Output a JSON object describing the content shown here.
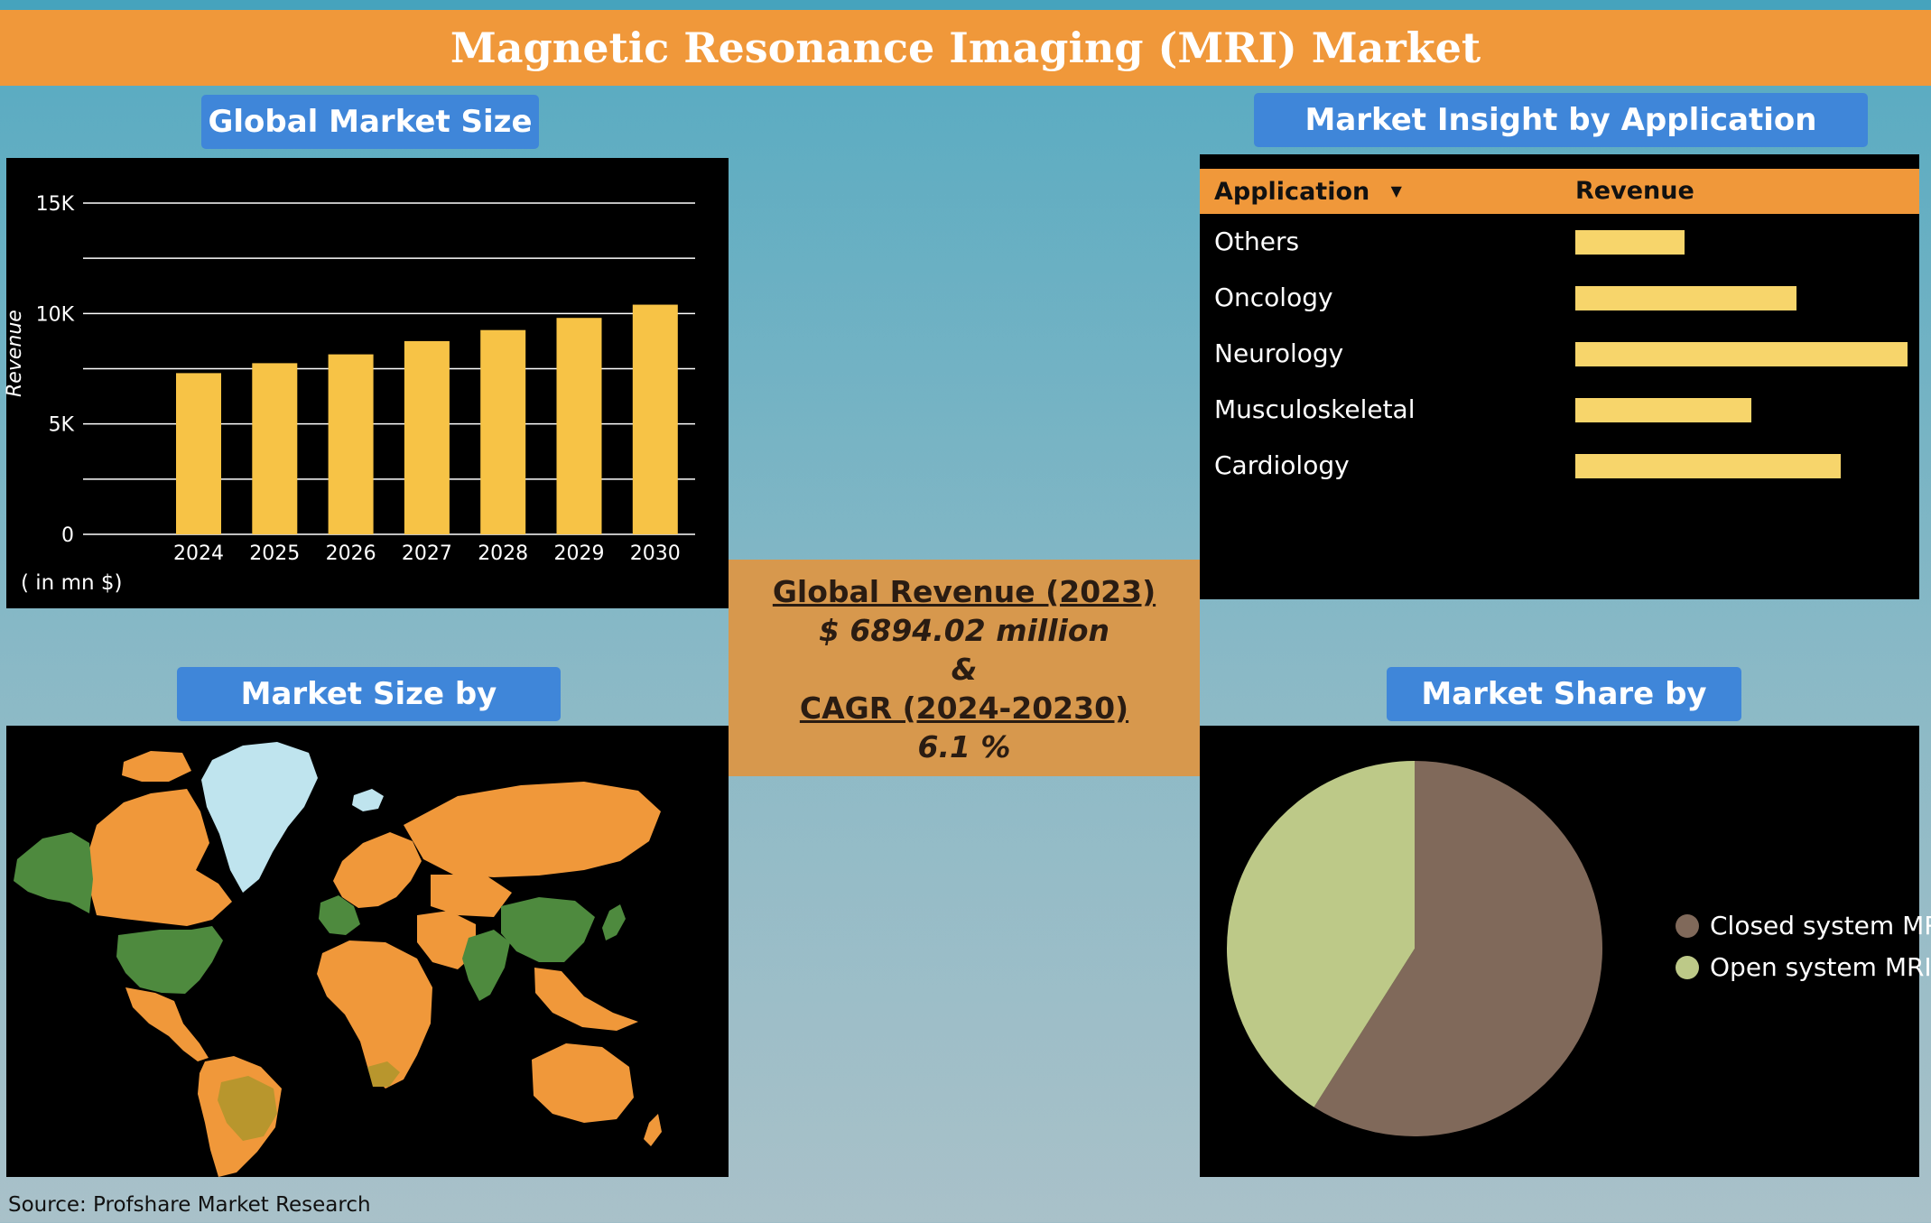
{
  "header": {
    "title": "Magnetic Resonance Imaging (MRI) Market"
  },
  "sections": {
    "market_size": "Global Market Size",
    "application": "Market Insight by Application",
    "region": "Market Size by Region",
    "type": "Market Share by Type"
  },
  "summary": {
    "revenue_label": "Global Revenue (2023)",
    "revenue_value": "$ 6894.02 million",
    "amp": "&",
    "cagr_label": "CAGR (2024-20230)",
    "cagr_value": "6.1 %"
  },
  "footer": {
    "source": "Source: Profshare Market Research"
  },
  "chart_data": [
    {
      "type": "bar",
      "categories": [
        "2024",
        "2025",
        "2026",
        "2027",
        "2028",
        "2029",
        "2030"
      ],
      "values": [
        7300,
        7750,
        8150,
        8750,
        9250,
        9800,
        10400
      ],
      "ylabel": "Revenue",
      "unit_note": "( in mn $)",
      "yticks": [
        {
          "value": 0,
          "label": "0"
        },
        {
          "value": 5000,
          "label": "5K"
        },
        {
          "value": 10000,
          "label": "10K"
        },
        {
          "value": 15000,
          "label": "15K"
        }
      ],
      "ylim": [
        0,
        15000
      ],
      "grid": true,
      "color": "#f7c346"
    },
    {
      "type": "table",
      "columns": [
        "Application",
        "Revenue"
      ],
      "rows": [
        {
          "label": "Others",
          "value": 0.33
        },
        {
          "label": "Oncology",
          "value": 0.665
        },
        {
          "label": "Neurology",
          "value": 1.0
        },
        {
          "label": "Musculoskeletal",
          "value": 0.53
        },
        {
          "label": "Cardiology",
          "value": 0.8
        }
      ],
      "bar_color": "#f7d56b"
    },
    {
      "type": "pie",
      "slices": [
        {
          "name": "Closed system MRI",
          "value": 59,
          "color": "#80695a"
        },
        {
          "name": "Open system MRI",
          "value": 41,
          "color": "#bdc988"
        }
      ],
      "legend": "right"
    }
  ],
  "map_colors": {
    "land": "#f0983a",
    "highlight": "#4e8a3e",
    "mid": "#b8962d",
    "ice": "#bfe4ee"
  }
}
